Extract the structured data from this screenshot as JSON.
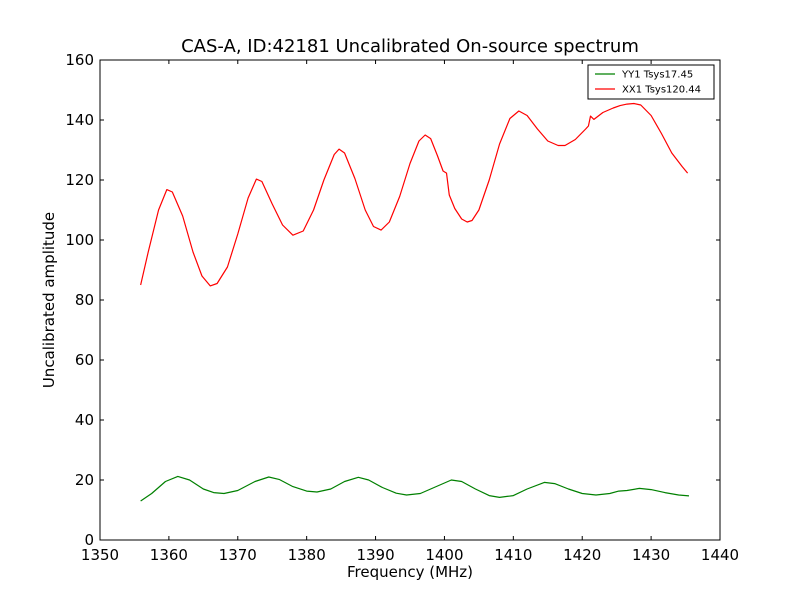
{
  "chart_data": {
    "type": "line",
    "title": "CAS-A, ID:42181 Uncalibrated On-source spectrum",
    "xlabel": "Frequency (MHz)",
    "ylabel": "Uncalibrated amplitude",
    "xlim": [
      1350,
      1440
    ],
    "ylim": [
      0,
      160
    ],
    "xticks": [
      "1350",
      "1360",
      "1370",
      "1380",
      "1390",
      "1400",
      "1410",
      "1420",
      "1430",
      "1440"
    ],
    "yticks": [
      "0",
      "20",
      "40",
      "60",
      "80",
      "100",
      "120",
      "140",
      "160"
    ],
    "grid": false,
    "legend": "top-right",
    "series": [
      {
        "name": "YY1 Tsys17.45",
        "color": "#008000",
        "points": [
          [
            1355.9,
            13.0
          ],
          [
            1357.5,
            15.5
          ],
          [
            1359.5,
            19.5
          ],
          [
            1361.3,
            21.2
          ],
          [
            1363.0,
            20.0
          ],
          [
            1365.0,
            17.0
          ],
          [
            1366.5,
            15.8
          ],
          [
            1368.0,
            15.5
          ],
          [
            1370.0,
            16.5
          ],
          [
            1372.5,
            19.5
          ],
          [
            1374.5,
            21.0
          ],
          [
            1376.0,
            20.2
          ],
          [
            1378.0,
            17.8
          ],
          [
            1380.0,
            16.3
          ],
          [
            1381.5,
            16.0
          ],
          [
            1383.5,
            17.0
          ],
          [
            1385.5,
            19.5
          ],
          [
            1387.5,
            20.9
          ],
          [
            1389.0,
            20.0
          ],
          [
            1391.0,
            17.5
          ],
          [
            1393.0,
            15.6
          ],
          [
            1394.5,
            15.0
          ],
          [
            1396.5,
            15.5
          ],
          [
            1398.5,
            17.5
          ],
          [
            1401.0,
            20.0
          ],
          [
            1402.5,
            19.5
          ],
          [
            1404.5,
            17.0
          ],
          [
            1406.5,
            14.8
          ],
          [
            1408.0,
            14.2
          ],
          [
            1410.0,
            14.8
          ],
          [
            1412.0,
            17.0
          ],
          [
            1414.5,
            19.2
          ],
          [
            1416.0,
            18.8
          ],
          [
            1418.0,
            17.0
          ],
          [
            1420.0,
            15.5
          ],
          [
            1422.0,
            15.0
          ],
          [
            1424.0,
            15.5
          ],
          [
            1425.3,
            16.3
          ],
          [
            1426.5,
            16.5
          ],
          [
            1428.3,
            17.2
          ],
          [
            1430.0,
            16.8
          ],
          [
            1432.0,
            15.8
          ],
          [
            1434.0,
            15.0
          ],
          [
            1435.5,
            14.7
          ]
        ]
      },
      {
        "name": "XX1 Tsys120.44",
        "color": "#ff0000",
        "points": [
          [
            1355.9,
            85.0
          ],
          [
            1357.0,
            96.0
          ],
          [
            1358.5,
            110.0
          ],
          [
            1359.7,
            116.8
          ],
          [
            1360.5,
            116.0
          ],
          [
            1362.0,
            108.0
          ],
          [
            1363.5,
            96.0
          ],
          [
            1364.8,
            88.0
          ],
          [
            1366.0,
            84.7
          ],
          [
            1367.0,
            85.5
          ],
          [
            1368.5,
            91.0
          ],
          [
            1370.0,
            102.0
          ],
          [
            1371.5,
            114.0
          ],
          [
            1372.7,
            120.3
          ],
          [
            1373.5,
            119.5
          ],
          [
            1375.0,
            112.0
          ],
          [
            1376.5,
            105.0
          ],
          [
            1378.0,
            101.6
          ],
          [
            1379.5,
            103.0
          ],
          [
            1381.0,
            110.0
          ],
          [
            1382.5,
            120.0
          ],
          [
            1384.0,
            128.5
          ],
          [
            1384.7,
            130.3
          ],
          [
            1385.5,
            129.0
          ],
          [
            1387.0,
            120.5
          ],
          [
            1388.5,
            110.0
          ],
          [
            1389.7,
            104.5
          ],
          [
            1390.8,
            103.3
          ],
          [
            1392.0,
            106.0
          ],
          [
            1393.5,
            114.5
          ],
          [
            1395.0,
            125.5
          ],
          [
            1396.3,
            133.0
          ],
          [
            1397.2,
            135.0
          ],
          [
            1398.0,
            133.8
          ],
          [
            1399.0,
            128.0
          ],
          [
            1399.8,
            123.0
          ],
          [
            1400.3,
            122.3
          ],
          [
            1400.7,
            115.0
          ],
          [
            1401.5,
            110.5
          ],
          [
            1402.5,
            107.0
          ],
          [
            1403.3,
            106.0
          ],
          [
            1404.0,
            106.5
          ],
          [
            1405.0,
            110.0
          ],
          [
            1406.5,
            120.0
          ],
          [
            1408.0,
            132.0
          ],
          [
            1409.5,
            140.5
          ],
          [
            1410.8,
            143.0
          ],
          [
            1412.0,
            141.5
          ],
          [
            1413.5,
            137.0
          ],
          [
            1415.0,
            133.0
          ],
          [
            1416.5,
            131.5
          ],
          [
            1417.5,
            131.5
          ],
          [
            1419.0,
            133.5
          ],
          [
            1420.5,
            137.0
          ],
          [
            1420.9,
            138.0
          ],
          [
            1421.2,
            141.3
          ],
          [
            1421.7,
            140.2
          ],
          [
            1423.0,
            142.5
          ],
          [
            1424.5,
            144.0
          ],
          [
            1425.5,
            144.8
          ],
          [
            1426.5,
            145.3
          ],
          [
            1427.5,
            145.5
          ],
          [
            1428.5,
            145.0
          ],
          [
            1430.0,
            141.5
          ],
          [
            1431.5,
            135.5
          ],
          [
            1433.0,
            129.0
          ],
          [
            1434.5,
            124.5
          ],
          [
            1435.3,
            122.3
          ]
        ]
      }
    ]
  }
}
